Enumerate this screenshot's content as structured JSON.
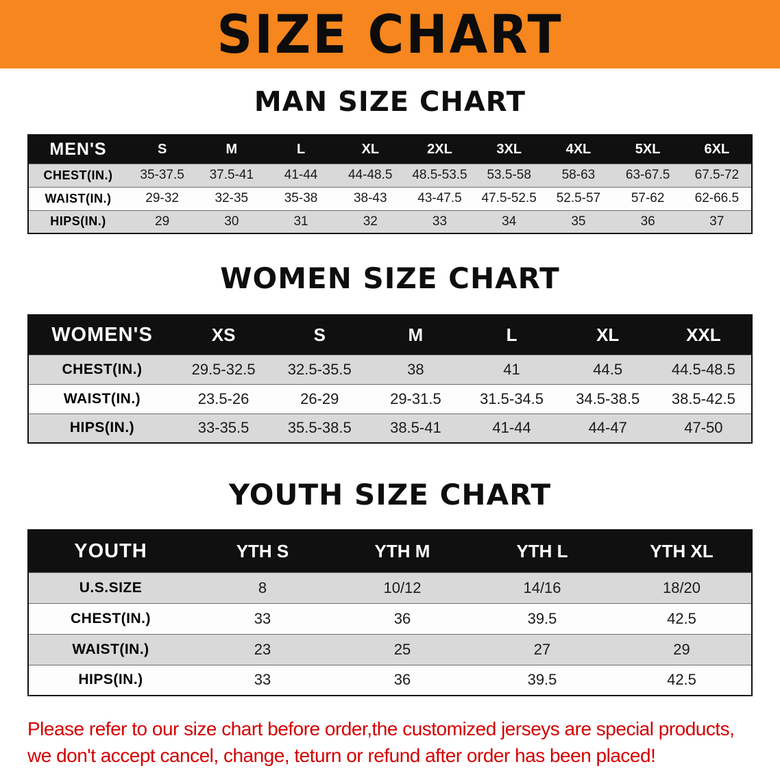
{
  "banner": {
    "title": "SIZE CHART"
  },
  "colors": {
    "banner_bg": "#f6861d",
    "header_black": "#101010",
    "row_gray": "#d9d9d9",
    "note_red": "#d40000"
  },
  "sections": [
    {
      "heading": "MAN SIZE CHART",
      "table": {
        "header_label": "MEN'S",
        "columns": [
          "S",
          "M",
          "L",
          "XL",
          "2XL",
          "3XL",
          "4XL",
          "5XL",
          "6XL"
        ],
        "rows": [
          {
            "label": "CHEST(IN.)",
            "values": [
              "35-37.5",
              "37.5-41",
              "41-44",
              "44-48.5",
              "48.5-53.5",
              "53.5-58",
              "58-63",
              "63-67.5",
              "67.5-72"
            ]
          },
          {
            "label": "WAIST(IN.)",
            "values": [
              "29-32",
              "32-35",
              "35-38",
              "38-43",
              "43-47.5",
              "47.5-52.5",
              "52.5-57",
              "57-62",
              "62-66.5"
            ]
          },
          {
            "label": "HIPS(IN.)",
            "values": [
              "29",
              "30",
              "31",
              "32",
              "33",
              "34",
              "35",
              "36",
              "37"
            ]
          }
        ]
      }
    },
    {
      "heading": "WOMEN SIZE CHART",
      "table": {
        "header_label": "WOMEN'S",
        "columns": [
          "XS",
          "S",
          "M",
          "L",
          "XL",
          "XXL"
        ],
        "rows": [
          {
            "label": "CHEST(IN.)",
            "values": [
              "29.5-32.5",
              "32.5-35.5",
              "38",
              "41",
              "44.5",
              "44.5-48.5"
            ]
          },
          {
            "label": "WAIST(IN.)",
            "values": [
              "23.5-26",
              "26-29",
              "29-31.5",
              "31.5-34.5",
              "34.5-38.5",
              "38.5-42.5"
            ]
          },
          {
            "label": "HIPS(IN.)",
            "values": [
              "33-35.5",
              "35.5-38.5",
              "38.5-41",
              "41-44",
              "44-47",
              "47-50"
            ]
          }
        ]
      }
    },
    {
      "heading": "YOUTH SIZE CHART",
      "table": {
        "header_label": "YOUTH",
        "columns": [
          "YTH S",
          "YTH M",
          "YTH L",
          "YTH XL"
        ],
        "rows": [
          {
            "label": "U.S.SIZE",
            "values": [
              "8",
              "10/12",
              "14/16",
              "18/20"
            ]
          },
          {
            "label": "CHEST(IN.)",
            "values": [
              "33",
              "36",
              "39.5",
              "42.5"
            ]
          },
          {
            "label": "WAIST(IN.)",
            "values": [
              "23",
              "25",
              "27",
              "29"
            ]
          },
          {
            "label": "HIPS(IN.)",
            "values": [
              "33",
              "36",
              "39.5",
              "42.5"
            ]
          }
        ]
      }
    }
  ],
  "footer_note": {
    "line1": "Please refer to our size chart before order,the customized jerseys are special products,",
    "line2": "we don't accept cancel, change, teturn or refund after order has been placed!"
  }
}
